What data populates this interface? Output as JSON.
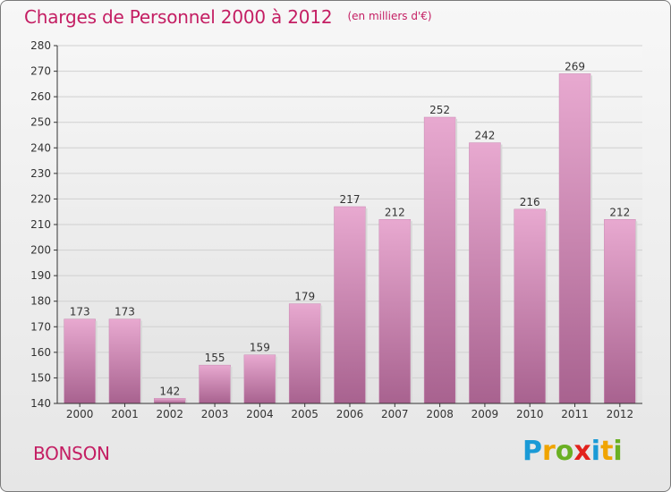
{
  "title": "Charges de Personnel 2000 à 2012",
  "subtitle": "(en milliers d'€)",
  "commune": "BONSON",
  "brand": {
    "letters": [
      "P",
      "r",
      "o",
      "x",
      "i",
      "t",
      "i"
    ],
    "colors": [
      "#1a9ad6",
      "#f0a400",
      "#6ab023",
      "#e2211c",
      "#1a9ad6",
      "#f0a400",
      "#6ab023"
    ]
  },
  "colors": {
    "bar_top": "#e8a9d0",
    "bar_bottom": "#a8628f",
    "grid": "#d0d0d0",
    "axis": "#333333"
  },
  "chart_data": {
    "type": "bar",
    "categories": [
      "2000",
      "2001",
      "2002",
      "2003",
      "2004",
      "2005",
      "2006",
      "2007",
      "2008",
      "2009",
      "2010",
      "2011",
      "2012"
    ],
    "values": [
      173,
      173,
      142,
      155,
      159,
      179,
      217,
      212,
      252,
      242,
      216,
      269,
      212
    ],
    "yticks": [
      140,
      150,
      160,
      170,
      180,
      190,
      200,
      210,
      220,
      230,
      240,
      250,
      260,
      270,
      280
    ],
    "ylim": [
      140,
      280
    ],
    "grid": true
  }
}
